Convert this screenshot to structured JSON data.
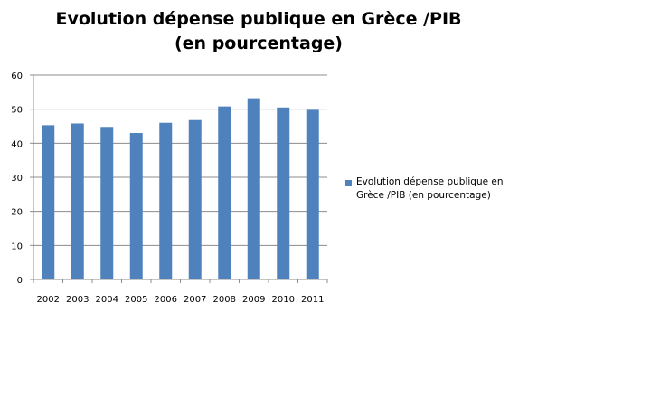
{
  "chart_data": {
    "type": "bar",
    "title_line1": "Evolution dépense publique en Grèce /PIB",
    "title_line2": "(en pourcentage)",
    "categories": [
      "2002",
      "2003",
      "2004",
      "2005",
      "2006",
      "2007",
      "2008",
      "2009",
      "2010",
      "2011"
    ],
    "series": [
      {
        "name_line1": "Evolution dépense publique en",
        "name_line2": "Grèce /PIB (en pourcentage)",
        "values": [
          45.3,
          45.8,
          44.8,
          43.0,
          46.0,
          46.8,
          50.8,
          53.2,
          50.5,
          49.8
        ],
        "color": "#4f81bd"
      }
    ],
    "ylim": [
      0,
      60
    ],
    "yticks": [
      0,
      10,
      20,
      30,
      40,
      50,
      60
    ],
    "grid": true,
    "legend_position": "right"
  }
}
